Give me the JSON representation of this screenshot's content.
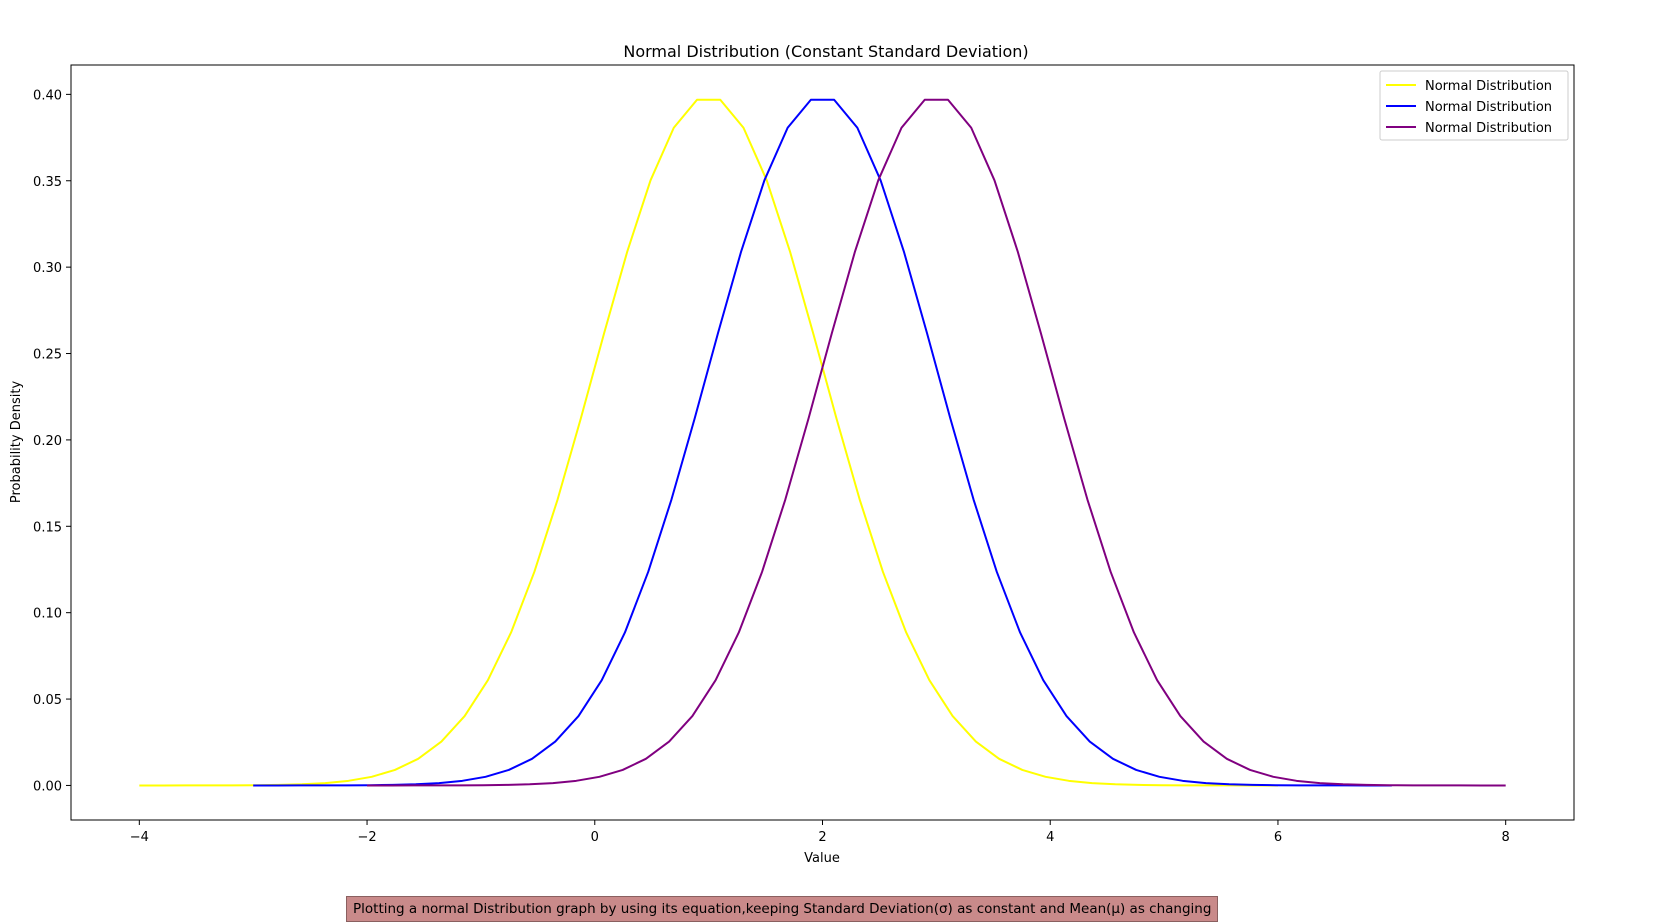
{
  "chart_data": {
    "type": "line",
    "title": "Normal Distribution (Constant Standard Deviation)",
    "xlabel": "Value",
    "ylabel": "Probability Density",
    "xlim": [
      -4.6,
      8.6
    ],
    "ylim": [
      -0.02,
      0.417
    ],
    "x_ticks": [
      -4,
      -2,
      0,
      2,
      4,
      6,
      8
    ],
    "x_tick_labels": [
      "−4",
      "−2",
      "0",
      "2",
      "4",
      "6",
      "8"
    ],
    "y_ticks": [
      0.0,
      0.05,
      0.1,
      0.15,
      0.2,
      0.25,
      0.3,
      0.35,
      0.4
    ],
    "y_tick_labels": [
      "0.00",
      "0.05",
      "0.10",
      "0.15",
      "0.20",
      "0.25",
      "0.30",
      "0.35",
      "0.40"
    ],
    "grid": false,
    "legend_position": "top-right",
    "series": [
      {
        "name": "Normal Distribution",
        "color": "#ffff00",
        "mean": 1,
        "std": 1,
        "x_range": [
          -4,
          6
        ],
        "points": 50
      },
      {
        "name": "Normal Distribution",
        "color": "#0000ff",
        "mean": 2,
        "std": 1,
        "x_range": [
          -3,
          7
        ],
        "points": 50
      },
      {
        "name": "Normal Distribution",
        "color": "#800080",
        "mean": 3,
        "std": 1,
        "x_range": [
          -2,
          8
        ],
        "points": 50
      }
    ]
  },
  "caption": "Plotting a normal Distribution graph by using its equation,keeping Standard Deviation(σ) as constant and Mean(μ) as changing"
}
